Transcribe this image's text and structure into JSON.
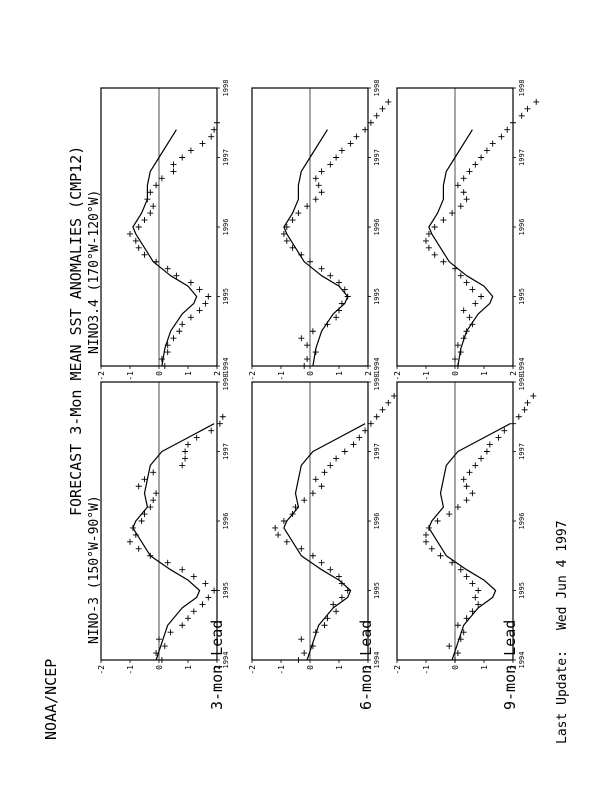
{
  "page": {
    "org": "NOAA/NCEP",
    "title": "FORECAST 3-Mon MEAN SST ANOMALIES (CMP12)",
    "last_update_label": "Last Update:",
    "last_update_value": "Wed Jun 4 1997"
  },
  "columns": [
    {
      "region": "NINO-3 (150°W-90°W)"
    },
    {
      "region": "NINO3.4 (170°W-120°W)"
    }
  ],
  "rows": [
    {
      "lead": "3-mon Lead"
    },
    {
      "lead": "6-mon Lead"
    },
    {
      "lead": "9-mon Lead"
    }
  ],
  "chart_data": {
    "type": "line",
    "layout": "3 rows (lead) x 2 columns (region), page rotated 90 degrees",
    "x_ticks": [
      "1994",
      "1995",
      "1996",
      "1997",
      "1998"
    ],
    "xlim": [
      1994.0,
      1998.0
    ],
    "y_ticks": [
      "-2",
      "-1",
      "0",
      "1",
      "2"
    ],
    "ylim": [
      -2,
      2
    ],
    "panels": [
      {
        "region": "NINO-3",
        "lead": "3-mon Lead",
        "observed_line": {
          "x": [
            1994.0,
            1994.25,
            1994.5,
            1994.75,
            1994.9,
            1995.0,
            1995.15,
            1995.3,
            1995.5,
            1995.7,
            1995.9,
            1996.0,
            1996.2,
            1996.4,
            1996.6,
            1996.8,
            1997.0,
            1997.2,
            1997.4
          ],
          "y": [
            -0.1,
            0.1,
            0.3,
            0.8,
            1.3,
            1.4,
            1.0,
            0.4,
            -0.3,
            -0.6,
            -0.9,
            -0.8,
            -0.4,
            -0.5,
            -0.4,
            -0.3,
            0.1,
            1.0,
            1.9
          ]
        },
        "forecast_points": {
          "x": [
            1994.0,
            1994.1,
            1994.2,
            1994.3,
            1994.4,
            1994.5,
            1994.6,
            1994.7,
            1994.8,
            1994.9,
            1995.0,
            1995.1,
            1995.2,
            1995.3,
            1995.4,
            1995.5,
            1995.6,
            1995.7,
            1995.8,
            1995.9,
            1996.0,
            1996.1,
            1996.2,
            1996.3,
            1996.4,
            1996.5,
            1996.6,
            1996.7,
            1996.8,
            1996.9,
            1997.0,
            1997.1,
            1997.2,
            1997.3,
            1997.4,
            1997.5
          ],
          "y": [
            0.1,
            -0.1,
            0.2,
            0.0,
            0.4,
            0.8,
            1.0,
            1.2,
            1.5,
            1.7,
            1.9,
            1.6,
            1.2,
            0.8,
            0.3,
            -0.3,
            -0.7,
            -1.0,
            -0.8,
            -0.9,
            -0.6,
            -0.5,
            -0.3,
            -0.2,
            -0.1,
            -0.7,
            -0.5,
            -0.2,
            0.8,
            0.9,
            0.9,
            1.0,
            1.3,
            1.8,
            2.1,
            2.2
          ]
        }
      },
      {
        "region": "NINO3.4",
        "lead": "3-mon Lead",
        "observed_line": {
          "x": [
            1994.0,
            1994.25,
            1994.5,
            1994.75,
            1994.9,
            1995.0,
            1995.15,
            1995.3,
            1995.5,
            1995.7,
            1995.9,
            1996.0,
            1996.2,
            1996.4,
            1996.6,
            1996.8,
            1997.0,
            1997.2,
            1997.4
          ],
          "y": [
            0.1,
            0.2,
            0.4,
            0.8,
            1.2,
            1.3,
            1.0,
            0.4,
            -0.2,
            -0.5,
            -0.8,
            -0.9,
            -0.6,
            -0.4,
            -0.4,
            -0.3,
            0.0,
            0.3,
            0.6
          ]
        },
        "forecast_points": {
          "x": [
            1994.0,
            1994.1,
            1994.2,
            1994.3,
            1994.4,
            1994.5,
            1994.6,
            1994.7,
            1994.8,
            1994.9,
            1995.0,
            1995.1,
            1995.2,
            1995.3,
            1995.4,
            1995.5,
            1995.6,
            1995.7,
            1995.8,
            1995.9,
            1996.0,
            1996.1,
            1996.2,
            1996.3,
            1996.4,
            1996.5,
            1996.6,
            1996.7,
            1996.8,
            1996.9,
            1997.0,
            1997.1,
            1997.2,
            1997.3,
            1997.4,
            1997.5
          ],
          "y": [
            0.2,
            0.1,
            0.3,
            0.3,
            0.5,
            0.7,
            0.8,
            1.1,
            1.4,
            1.6,
            1.7,
            1.4,
            1.1,
            0.6,
            0.3,
            -0.1,
            -0.5,
            -0.7,
            -0.8,
            -1.0,
            -0.7,
            -0.5,
            -0.3,
            -0.2,
            -0.4,
            -0.3,
            -0.1,
            0.1,
            0.5,
            0.5,
            0.8,
            1.1,
            1.5,
            1.8,
            1.9,
            2.0
          ]
        }
      },
      {
        "region": "NINO-3",
        "lead": "6-mon Lead",
        "observed_line": {
          "x": [
            1994.0,
            1994.25,
            1994.5,
            1994.75,
            1994.9,
            1995.0,
            1995.15,
            1995.3,
            1995.5,
            1995.7,
            1995.9,
            1996.0,
            1996.2,
            1996.4,
            1996.6,
            1996.8,
            1997.0,
            1997.2,
            1997.4
          ],
          "y": [
            -0.1,
            0.1,
            0.3,
            0.8,
            1.3,
            1.4,
            1.0,
            0.4,
            -0.3,
            -0.6,
            -0.9,
            -0.8,
            -0.4,
            -0.5,
            -0.4,
            -0.3,
            0.1,
            1.0,
            1.9
          ]
        },
        "forecast_points": {
          "x": [
            1994.0,
            1994.1,
            1994.2,
            1994.3,
            1994.4,
            1994.5,
            1994.6,
            1994.7,
            1994.8,
            1994.9,
            1995.0,
            1995.1,
            1995.2,
            1995.3,
            1995.4,
            1995.5,
            1995.6,
            1995.7,
            1995.8,
            1995.9,
            1996.0,
            1996.1,
            1996.2,
            1996.3,
            1996.4,
            1996.5,
            1996.6,
            1996.7,
            1996.8,
            1996.9,
            1997.0,
            1997.1,
            1997.2,
            1997.3,
            1997.4,
            1997.5,
            1997.6,
            1997.7,
            1997.8
          ],
          "y": [
            -0.4,
            -0.2,
            0.1,
            -0.3,
            0.2,
            0.5,
            0.6,
            0.9,
            0.8,
            1.1,
            1.3,
            1.1,
            1.0,
            0.7,
            0.4,
            0.1,
            -0.3,
            -0.8,
            -1.1,
            -1.2,
            -0.9,
            -0.6,
            -0.5,
            -0.2,
            0.1,
            0.4,
            0.2,
            0.5,
            0.7,
            0.9,
            1.2,
            1.5,
            1.7,
            1.9,
            2.1,
            2.3,
            2.5,
            2.7,
            2.9
          ]
        }
      },
      {
        "region": "NINO3.4",
        "lead": "6-mon Lead",
        "observed_line": {
          "x": [
            1994.0,
            1994.25,
            1994.5,
            1994.75,
            1994.9,
            1995.0,
            1995.15,
            1995.3,
            1995.5,
            1995.7,
            1995.9,
            1996.0,
            1996.2,
            1996.4,
            1996.6,
            1996.8,
            1997.0,
            1997.2,
            1997.4
          ],
          "y": [
            0.1,
            0.2,
            0.4,
            0.8,
            1.2,
            1.3,
            1.0,
            0.4,
            -0.2,
            -0.5,
            -0.8,
            -0.9,
            -0.6,
            -0.4,
            -0.4,
            -0.3,
            0.0,
            0.3,
            0.6
          ]
        },
        "forecast_points": {
          "x": [
            1994.0,
            1994.1,
            1994.2,
            1994.3,
            1994.4,
            1994.5,
            1994.6,
            1994.7,
            1994.8,
            1994.9,
            1995.0,
            1995.1,
            1995.2,
            1995.3,
            1995.4,
            1995.5,
            1995.6,
            1995.7,
            1995.8,
            1995.9,
            1996.0,
            1996.1,
            1996.2,
            1996.3,
            1996.4,
            1996.5,
            1996.6,
            1996.7,
            1996.8,
            1996.9,
            1997.0,
            1997.1,
            1997.2,
            1997.3,
            1997.4,
            1997.5,
            1997.6,
            1997.7,
            1997.8
          ],
          "y": [
            -0.2,
            -0.1,
            0.2,
            -0.1,
            -0.3,
            0.1,
            0.6,
            0.9,
            1.0,
            1.1,
            1.3,
            1.2,
            1.0,
            0.7,
            0.4,
            0.0,
            -0.3,
            -0.6,
            -0.8,
            -0.9,
            -0.8,
            -0.6,
            -0.4,
            -0.1,
            0.2,
            0.4,
            0.3,
            0.2,
            0.4,
            0.7,
            0.9,
            1.1,
            1.4,
            1.6,
            1.9,
            2.1,
            2.3,
            2.5,
            2.7
          ]
        }
      },
      {
        "region": "NINO-3",
        "lead": "9-mon Lead",
        "observed_line": {
          "x": [
            1994.0,
            1994.25,
            1994.5,
            1994.75,
            1994.9,
            1995.0,
            1995.15,
            1995.3,
            1995.5,
            1995.7,
            1995.9,
            1996.0,
            1996.2,
            1996.4,
            1996.6,
            1996.8,
            1997.0,
            1997.2,
            1997.4
          ],
          "y": [
            -0.1,
            0.1,
            0.3,
            0.8,
            1.3,
            1.4,
            1.0,
            0.4,
            -0.3,
            -0.6,
            -0.9,
            -0.8,
            -0.4,
            -0.5,
            -0.4,
            -0.3,
            0.1,
            1.0,
            1.9
          ]
        },
        "forecast_points": {
          "x": [
            1994.0,
            1994.1,
            1994.2,
            1994.3,
            1994.4,
            1994.5,
            1994.6,
            1994.7,
            1994.8,
            1994.9,
            1995.0,
            1995.1,
            1995.2,
            1995.3,
            1995.4,
            1995.5,
            1995.6,
            1995.7,
            1995.8,
            1995.9,
            1996.0,
            1996.1,
            1996.2,
            1996.3,
            1996.4,
            1996.5,
            1996.6,
            1996.7,
            1996.8,
            1996.9,
            1997.0,
            1997.1,
            1997.2,
            1997.3,
            1997.4,
            1997.5,
            1997.6,
            1997.7,
            1997.8
          ],
          "y": [
            0.0,
            0.1,
            -0.2,
            0.2,
            0.3,
            0.1,
            0.4,
            0.6,
            0.8,
            0.7,
            0.8,
            0.6,
            0.4,
            0.2,
            -0.1,
            -0.5,
            -0.8,
            -1.0,
            -1.0,
            -0.9,
            -0.6,
            -0.2,
            0.1,
            0.4,
            0.6,
            0.4,
            0.3,
            0.5,
            0.7,
            0.9,
            1.1,
            1.2,
            1.5,
            1.7,
            2.0,
            2.2,
            2.4,
            2.5,
            2.7
          ]
        }
      },
      {
        "region": "NINO3.4",
        "lead": "9-mon Lead",
        "observed_line": {
          "x": [
            1994.0,
            1994.25,
            1994.5,
            1994.75,
            1994.9,
            1995.0,
            1995.15,
            1995.3,
            1995.5,
            1995.7,
            1995.9,
            1996.0,
            1996.2,
            1996.4,
            1996.6,
            1996.8,
            1997.0,
            1997.2,
            1997.4
          ],
          "y": [
            0.1,
            0.2,
            0.4,
            0.8,
            1.2,
            1.3,
            1.0,
            0.4,
            -0.2,
            -0.5,
            -0.8,
            -0.9,
            -0.6,
            -0.4,
            -0.4,
            -0.3,
            0.0,
            0.3,
            0.6
          ]
        },
        "forecast_points": {
          "x": [
            1994.0,
            1994.1,
            1994.2,
            1994.3,
            1994.4,
            1994.5,
            1994.6,
            1994.7,
            1994.8,
            1994.9,
            1995.0,
            1995.1,
            1995.2,
            1995.3,
            1995.4,
            1995.5,
            1995.6,
            1995.7,
            1995.8,
            1995.9,
            1996.0,
            1996.1,
            1996.2,
            1996.3,
            1996.4,
            1996.5,
            1996.6,
            1996.7,
            1996.8,
            1996.9,
            1997.0,
            1997.1,
            1997.2,
            1997.3,
            1997.4,
            1997.5,
            1997.6,
            1997.7,
            1997.8
          ],
          "y": [
            0.1,
            0.0,
            0.2,
            0.1,
            0.3,
            0.4,
            0.6,
            0.5,
            0.3,
            0.7,
            0.9,
            0.6,
            0.4,
            0.2,
            0.0,
            -0.4,
            -0.7,
            -0.9,
            -1.0,
            -0.9,
            -0.7,
            -0.4,
            -0.1,
            0.2,
            0.4,
            0.3,
            0.1,
            0.3,
            0.5,
            0.7,
            0.9,
            1.1,
            1.3,
            1.6,
            1.8,
            2.0,
            2.3,
            2.5,
            2.8
          ]
        }
      }
    ]
  }
}
